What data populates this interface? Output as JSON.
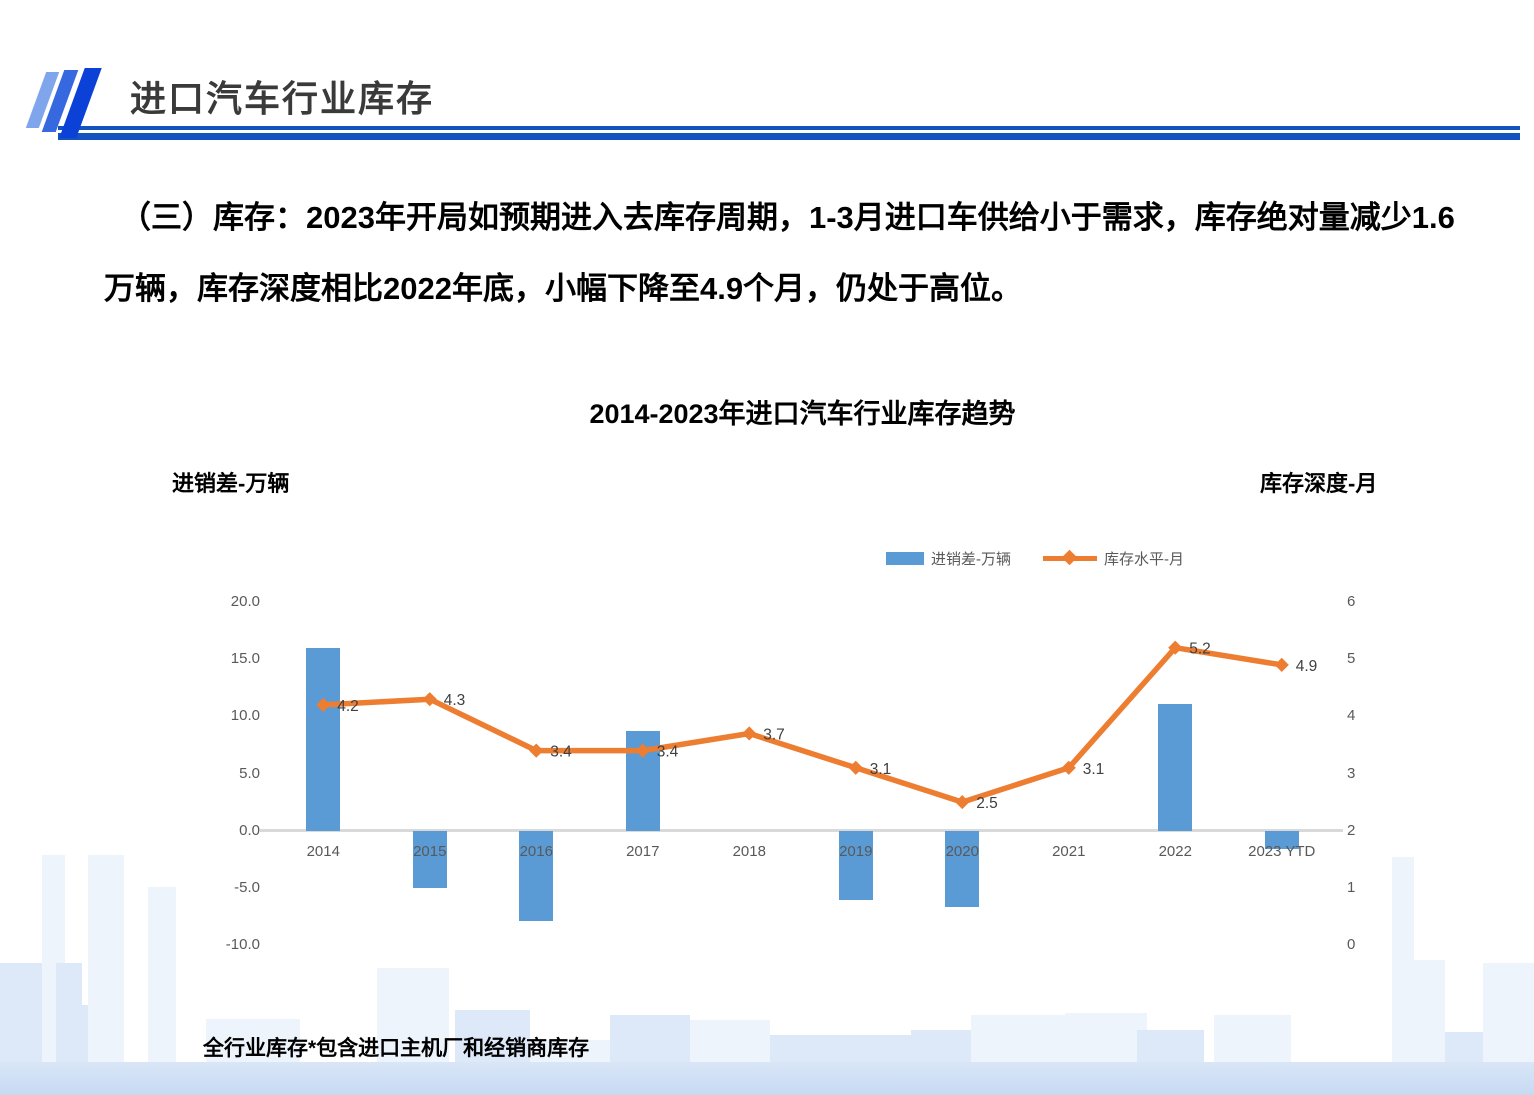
{
  "header": {
    "title": "进口汽车行业库存",
    "underline_color": "#1353C1",
    "logo_colors": [
      "#7FA5EC",
      "#3668DF",
      "#0B41D6"
    ]
  },
  "body_text": {
    "line1": "（三）库存：2023年开局如预期进入去库存周期，1-3月进口车供给小于需求，库存绝对量减少1.6",
    "line2": "万辆，库存深度相比2022年底，小幅下降至4.9个月，仍处于高位。"
  },
  "chart": {
    "title": "2014-2023年进口汽车行业库存趋势",
    "left_axis_label": "进销差-万辆",
    "right_axis_label": "库存深度-月",
    "legend_bar_label": "进销差-万辆",
    "legend_line_label": "库存水平-月",
    "footnote": "全行业库存*包含进口主机厂和经销商库存"
  },
  "colors": {
    "axis_line": "#D9D9D9",
    "tick_text": "#595959",
    "point_label_text": "#404040",
    "skyline_light": "#EEF4FB",
    "skyline_mid": "#DDE9F8"
  },
  "chart_data": {
    "type": "bar",
    "subtype": "bar+line combo, dual axis",
    "title": "2014-2023年进口汽车行业库存趋势",
    "categories": [
      "2014",
      "2015",
      "2016",
      "2017",
      "2018",
      "2019",
      "2020",
      "2021",
      "2022",
      "2023 YTD"
    ],
    "series": [
      {
        "name": "进销差-万辆",
        "type": "bar",
        "axis": "left",
        "color": "#5B9BD5",
        "values": [
          16.0,
          -5.0,
          -7.9,
          8.7,
          0,
          -6.1,
          -6.7,
          0,
          11.1,
          -1.6
        ]
      },
      {
        "name": "库存水平-月",
        "type": "line",
        "axis": "right",
        "color": "#ED7D31",
        "values": [
          4.2,
          4.3,
          3.4,
          3.4,
          3.7,
          3.1,
          2.5,
          3.1,
          5.2,
          4.9
        ],
        "point_labels": [
          "4.2",
          "4.3",
          "3.4",
          "3.4",
          "3.7",
          "3.1",
          "2.5",
          "3.1",
          "5.2",
          "4.9"
        ]
      }
    ],
    "left_axis": {
      "label": "进销差-万辆",
      "ticks": [
        "20.0",
        "15.0",
        "10.0",
        "5.0",
        "0.0",
        "-5.0",
        "-10.0"
      ],
      "max": 20,
      "min": -10
    },
    "right_axis": {
      "label": "库存深度-月",
      "ticks": [
        "6",
        "5",
        "4",
        "3",
        "2",
        "1",
        "0"
      ],
      "max": 6,
      "min": 0
    },
    "grid": false,
    "legend_position": "top-inside-right",
    "data_labels": "line series only"
  }
}
